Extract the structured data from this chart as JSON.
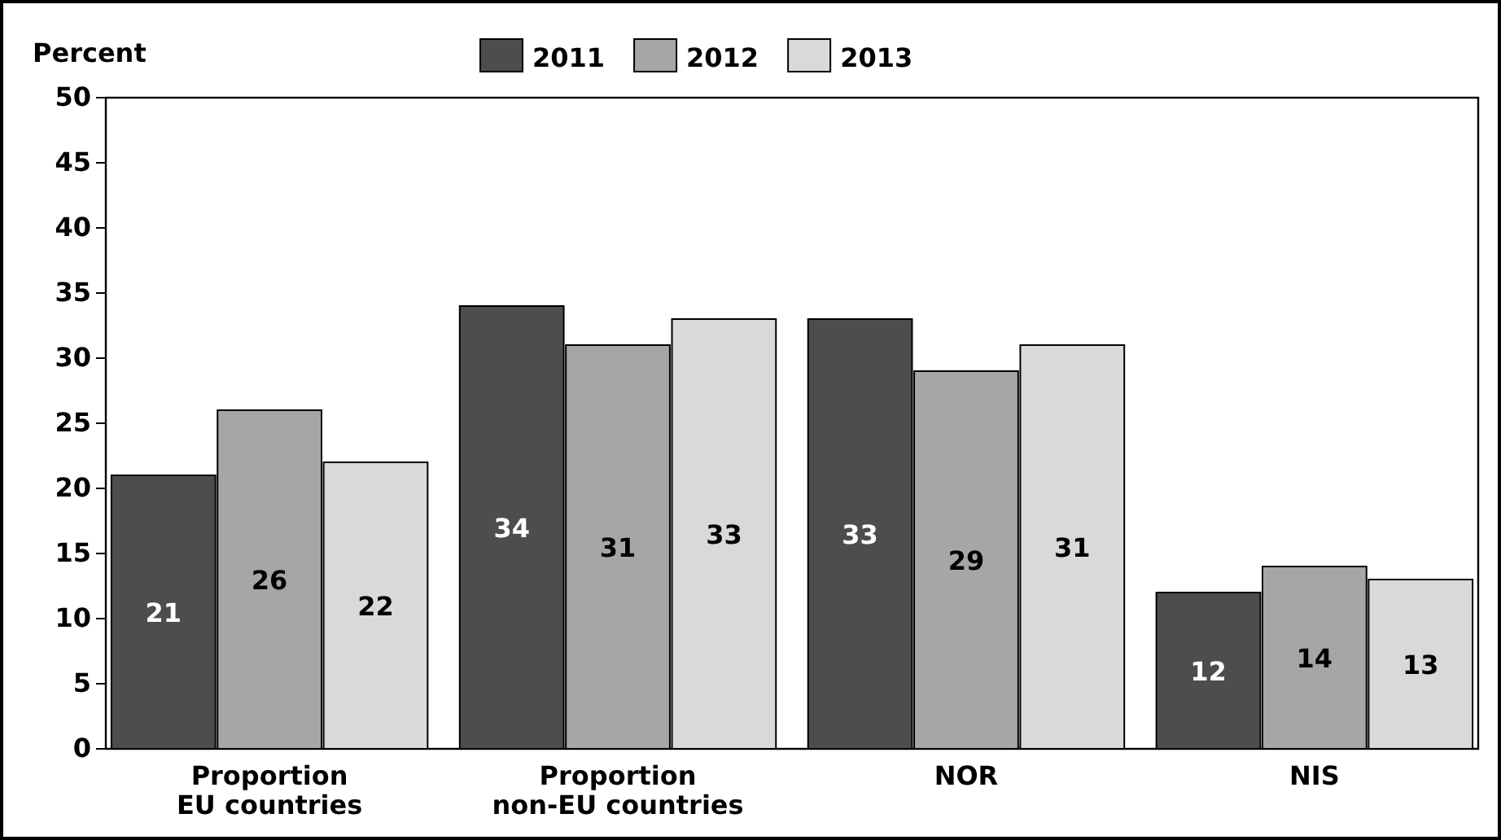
{
  "chart_data": {
    "type": "bar",
    "ylabel": "Percent",
    "categories": [
      "Proportion EU countries",
      "Proportion non-EU countries",
      "NOR",
      "NIS"
    ],
    "series": [
      {
        "name": "2011",
        "color": "#4d4d4d",
        "values": [
          21,
          34,
          33,
          12
        ]
      },
      {
        "name": "2012",
        "color": "#a6a6a6",
        "values": [
          26,
          31,
          29,
          14
        ]
      },
      {
        "name": "2013",
        "color": "#d9d9d9",
        "values": [
          22,
          33,
          31,
          13
        ]
      }
    ],
    "ylim": [
      0,
      50
    ],
    "yticks": [
      0,
      5,
      10,
      15,
      20,
      25,
      30,
      35,
      40,
      45,
      50
    ],
    "data_labels": true,
    "legend": "top",
    "grid": false
  }
}
